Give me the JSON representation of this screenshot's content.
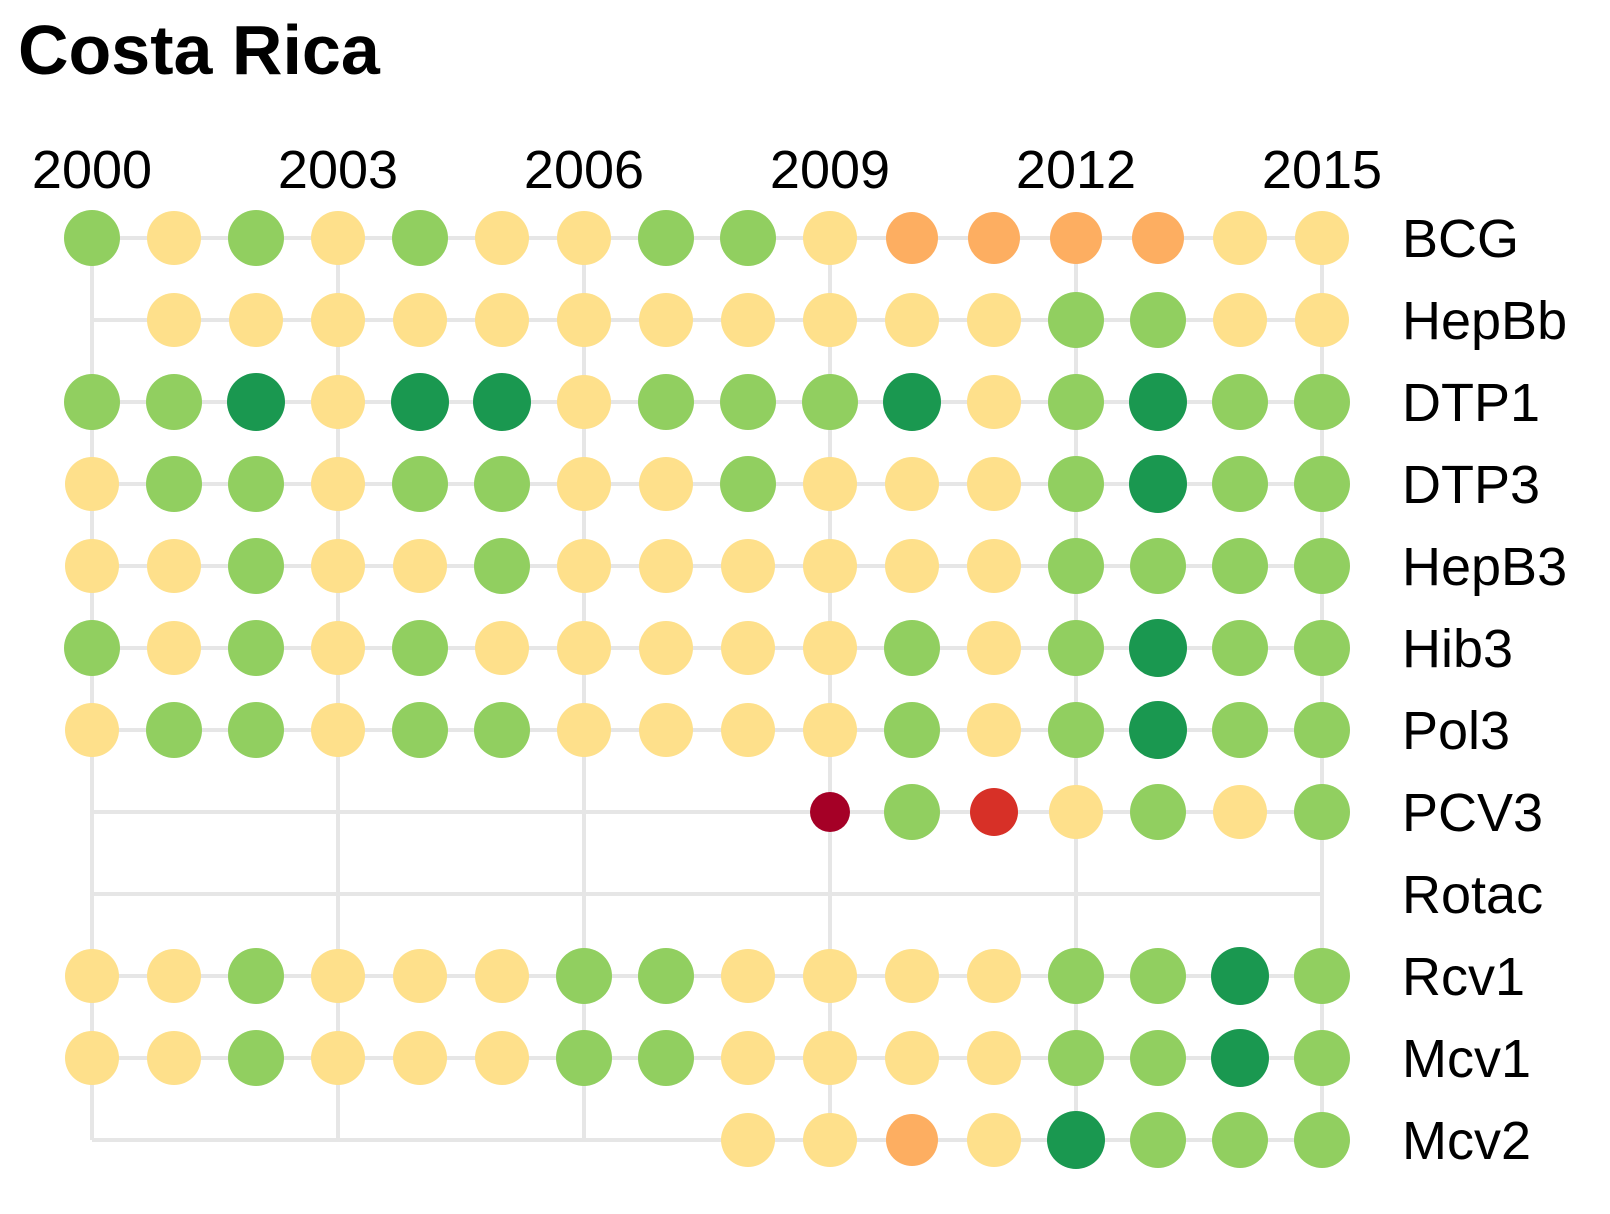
{
  "chart_data": {
    "type": "scatter",
    "title": "Costa Rica",
    "x": [
      2000,
      2001,
      2002,
      2003,
      2004,
      2005,
      2006,
      2007,
      2008,
      2009,
      2010,
      2011,
      2012,
      2013,
      2014,
      2015
    ],
    "x_tick_labels": [
      "2000",
      "2003",
      "2006",
      "2009",
      "2012",
      "2015"
    ],
    "rows": [
      "BCG",
      "HepBb",
      "DTP1",
      "DTP3",
      "HepB3",
      "Hib3",
      "Pol3",
      "PCV3",
      "Rotac",
      "Rcv1",
      "Mcv1",
      "Mcv2"
    ],
    "row_start_year": [
      2000,
      2000,
      2000,
      2000,
      2000,
      2000,
      2000,
      2000,
      2000,
      2000,
      2000,
      2000
    ],
    "legend": "none",
    "color_scale": {
      "1": "#a50026",
      "2": "#d73027",
      "3": "#fdae61",
      "4": "#fee08b",
      "5": "#91cf60",
      "6": "#1a9850"
    },
    "dot_radius_scale": {
      "1": 20,
      "2": 24,
      "3": 26,
      "4": 27,
      "5": 28,
      "6": 29
    },
    "gridline_years": [
      2000,
      2003,
      2006,
      2009,
      2012,
      2015
    ],
    "gridline_color": "#e6e6e6",
    "series": [
      {
        "name": "BCG",
        "values": [
          5,
          4,
          5,
          4,
          5,
          4,
          4,
          5,
          5,
          4,
          3,
          3,
          3,
          3,
          4,
          4
        ]
      },
      {
        "name": "HepBb",
        "values": [
          null,
          4,
          4,
          4,
          4,
          4,
          4,
          4,
          4,
          4,
          4,
          4,
          5,
          5,
          4,
          4
        ]
      },
      {
        "name": "DTP1",
        "values": [
          5,
          5,
          6,
          4,
          6,
          6,
          4,
          5,
          5,
          5,
          6,
          4,
          5,
          6,
          5,
          5
        ]
      },
      {
        "name": "DTP3",
        "values": [
          4,
          5,
          5,
          4,
          5,
          5,
          4,
          4,
          5,
          4,
          4,
          4,
          5,
          6,
          5,
          5
        ]
      },
      {
        "name": "HepB3",
        "values": [
          4,
          4,
          5,
          4,
          4,
          5,
          4,
          4,
          4,
          4,
          4,
          4,
          5,
          5,
          5,
          5
        ]
      },
      {
        "name": "Hib3",
        "values": [
          5,
          4,
          5,
          4,
          5,
          4,
          4,
          4,
          4,
          4,
          5,
          4,
          5,
          6,
          5,
          5
        ]
      },
      {
        "name": "Pol3",
        "values": [
          4,
          5,
          5,
          4,
          5,
          5,
          4,
          4,
          4,
          4,
          5,
          4,
          5,
          6,
          5,
          5
        ]
      },
      {
        "name": "PCV3",
        "values": [
          null,
          null,
          null,
          null,
          null,
          null,
          null,
          null,
          null,
          1,
          5,
          2,
          4,
          5,
          4,
          5
        ]
      },
      {
        "name": "Rotac",
        "values": [
          null,
          null,
          null,
          null,
          null,
          null,
          null,
          null,
          null,
          null,
          null,
          null,
          null,
          null,
          null,
          null
        ]
      },
      {
        "name": "Rcv1",
        "values": [
          4,
          4,
          5,
          4,
          4,
          4,
          5,
          5,
          4,
          4,
          4,
          4,
          5,
          5,
          6,
          5
        ]
      },
      {
        "name": "Mcv1",
        "values": [
          4,
          4,
          5,
          4,
          4,
          4,
          5,
          5,
          4,
          4,
          4,
          4,
          5,
          5,
          6,
          5
        ]
      },
      {
        "name": "Mcv2",
        "values": [
          null,
          null,
          null,
          null,
          null,
          null,
          null,
          null,
          4,
          4,
          3,
          4,
          6,
          5,
          5,
          5
        ]
      }
    ]
  }
}
